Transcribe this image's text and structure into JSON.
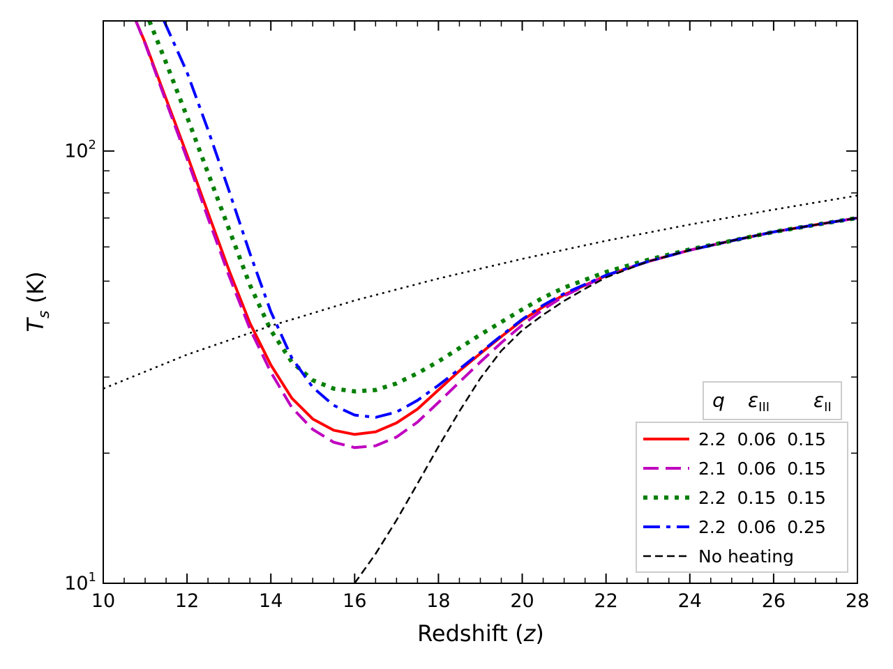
{
  "chart_data": {
    "type": "line",
    "title": "",
    "xlabel_text": "Redshift (",
    "xlabel_var": "z",
    "xlabel_close": ")",
    "ylabel_var": "T",
    "ylabel_sub": "s",
    "ylabel_unit": " (K)",
    "xlim": [
      10,
      28
    ],
    "ylim": [
      10,
      200
    ],
    "yscale": "log",
    "x_ticks": [
      10,
      12,
      14,
      16,
      18,
      20,
      22,
      24,
      26,
      28
    ],
    "x_tick_labels": [
      "10",
      "12",
      "14",
      "16",
      "18",
      "20",
      "22",
      "24",
      "26",
      "28"
    ],
    "y_ticks": [
      {
        "value": 10,
        "base": "10",
        "exp": "1"
      },
      {
        "value": 100,
        "base": "10",
        "exp": "2"
      }
    ],
    "legend_position": "lower-right",
    "legend_header": {
      "col1": "q",
      "col2_base": "ε",
      "col2_sub": "III",
      "col3_base": "ε",
      "col3_sub": "II"
    },
    "series": [
      {
        "name": "2.2  0.06  0.15",
        "color": "#ff0000",
        "dash": "solid",
        "width": 4,
        "points": [
          [
            10.78,
            200
          ],
          [
            11.0,
            178
          ],
          [
            11.5,
            132
          ],
          [
            12.0,
            98
          ],
          [
            12.5,
            72
          ],
          [
            13.0,
            53
          ],
          [
            13.5,
            40
          ],
          [
            14.0,
            32
          ],
          [
            14.5,
            26.8
          ],
          [
            15.0,
            24
          ],
          [
            15.5,
            22.6
          ],
          [
            16.0,
            22.1
          ],
          [
            16.5,
            22.4
          ],
          [
            17.0,
            23.5
          ],
          [
            17.5,
            25.3
          ],
          [
            18.0,
            28
          ],
          [
            18.5,
            31
          ],
          [
            19.0,
            34
          ],
          [
            19.5,
            37.2
          ],
          [
            20.0,
            40.6
          ],
          [
            20.5,
            43.6
          ],
          [
            21.0,
            46.5
          ],
          [
            22.0,
            51.5
          ],
          [
            23.0,
            55.5
          ],
          [
            24.0,
            59
          ],
          [
            25.0,
            62
          ],
          [
            26.0,
            65
          ],
          [
            27.0,
            67.5
          ],
          [
            28.0,
            70
          ]
        ]
      },
      {
        "name": "2.1  0.06  0.15",
        "color": "#bf00bf",
        "dash": "dashed",
        "width": 4,
        "points": [
          [
            10.78,
            200
          ],
          [
            11.0,
            177
          ],
          [
            11.5,
            130
          ],
          [
            12.0,
            96
          ],
          [
            12.5,
            70
          ],
          [
            13.0,
            51.5
          ],
          [
            13.5,
            38.8
          ],
          [
            14.0,
            30.8
          ],
          [
            14.5,
            25.5
          ],
          [
            15.0,
            22.7
          ],
          [
            15.5,
            21.2
          ],
          [
            16.0,
            20.6
          ],
          [
            16.5,
            20.8
          ],
          [
            17.0,
            21.8
          ],
          [
            17.5,
            23.6
          ],
          [
            18.0,
            26.2
          ],
          [
            18.5,
            29.2
          ],
          [
            19.0,
            32.5
          ],
          [
            19.5,
            36
          ],
          [
            20.0,
            39.6
          ],
          [
            20.5,
            43
          ],
          [
            21.0,
            46.2
          ],
          [
            22.0,
            51.5
          ],
          [
            23.0,
            55.5
          ],
          [
            24.0,
            59
          ],
          [
            25.0,
            62
          ],
          [
            26.0,
            65
          ],
          [
            27.0,
            67.5
          ],
          [
            28.0,
            70
          ]
        ]
      },
      {
        "name": "2.2  0.15  0.15",
        "color": "#007f00",
        "dash": "dotted",
        "width": 6,
        "points": [
          [
            11.1,
            200
          ],
          [
            11.5,
            160
          ],
          [
            12.0,
            120
          ],
          [
            12.5,
            89
          ],
          [
            13.0,
            66
          ],
          [
            13.5,
            49
          ],
          [
            14.0,
            38.5
          ],
          [
            14.5,
            32.5
          ],
          [
            15.0,
            29.5
          ],
          [
            15.5,
            28.2
          ],
          [
            16.0,
            27.8
          ],
          [
            16.5,
            28
          ],
          [
            17.0,
            29
          ],
          [
            17.5,
            30.6
          ],
          [
            18.0,
            32.6
          ],
          [
            18.5,
            35
          ],
          [
            19.0,
            37.6
          ],
          [
            19.5,
            40.2
          ],
          [
            20.0,
            43
          ],
          [
            20.5,
            45.8
          ],
          [
            21.0,
            48.3
          ],
          [
            22.0,
            52.5
          ],
          [
            23.0,
            56
          ],
          [
            24.0,
            59.2
          ],
          [
            25.0,
            62
          ],
          [
            26.0,
            65
          ],
          [
            27.0,
            67.5
          ],
          [
            28.0,
            70
          ]
        ]
      },
      {
        "name": "2.2  0.06  0.25",
        "color": "#0000ff",
        "dash": "dashdot",
        "width": 4,
        "points": [
          [
            11.45,
            200
          ],
          [
            12.0,
            152
          ],
          [
            12.5,
            112
          ],
          [
            13.0,
            81
          ],
          [
            13.5,
            58
          ],
          [
            14.0,
            42.5
          ],
          [
            14.5,
            33.2
          ],
          [
            15.0,
            28.4
          ],
          [
            15.5,
            25.8
          ],
          [
            16.0,
            24.5
          ],
          [
            16.5,
            24.2
          ],
          [
            17.0,
            24.9
          ],
          [
            17.5,
            26.5
          ],
          [
            18.0,
            28.7
          ],
          [
            18.5,
            31.3
          ],
          [
            19.0,
            34.2
          ],
          [
            19.5,
            37.4
          ],
          [
            20.0,
            40.8
          ],
          [
            20.5,
            44
          ],
          [
            21.0,
            46.8
          ],
          [
            22.0,
            51.6
          ],
          [
            23.0,
            55.5
          ],
          [
            24.0,
            59
          ],
          [
            25.0,
            62
          ],
          [
            26.0,
            65
          ],
          [
            27.0,
            67.5
          ],
          [
            28.0,
            70
          ]
        ]
      },
      {
        "name": "No heating",
        "color": "#000000",
        "dash": "dashed-thin",
        "width": 2.5,
        "points": [
          [
            16.0,
            10
          ],
          [
            16.5,
            11.7
          ],
          [
            17.0,
            14
          ],
          [
            17.5,
            17
          ],
          [
            18.0,
            20.7
          ],
          [
            18.5,
            25
          ],
          [
            19.0,
            29.8
          ],
          [
            19.5,
            34.5
          ],
          [
            20.0,
            38.5
          ],
          [
            20.5,
            41.8
          ],
          [
            21.0,
            45
          ],
          [
            21.5,
            48
          ],
          [
            22.0,
            51
          ],
          [
            23.0,
            55.5
          ],
          [
            24.0,
            59
          ],
          [
            25.0,
            62
          ],
          [
            26.0,
            65
          ],
          [
            27.0,
            67.5
          ],
          [
            28.0,
            70
          ]
        ]
      },
      {
        "name": "",
        "color": "#000000",
        "dash": "dotted-thin",
        "width": 2.5,
        "points": [
          [
            10.0,
            28.2
          ],
          [
            12.0,
            33.8
          ],
          [
            14.0,
            39.4
          ],
          [
            16.0,
            45.1
          ],
          [
            18.0,
            50.7
          ],
          [
            20.0,
            56.3
          ],
          [
            22.0,
            62
          ],
          [
            24.0,
            67.6
          ],
          [
            26.0,
            73.2
          ],
          [
            28.0,
            78.9
          ]
        ]
      }
    ]
  }
}
